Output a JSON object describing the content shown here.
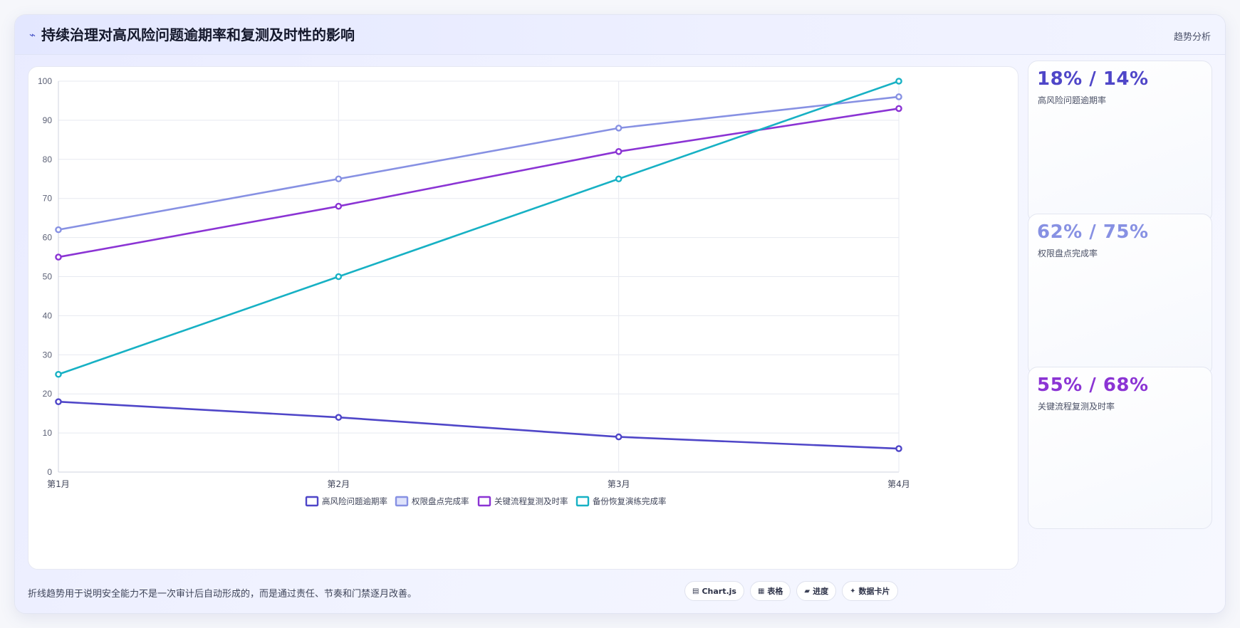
{
  "header": {
    "icon": "trend-line-icon",
    "title": "持续治理对高风险问题逾期率和复测及时性的影响",
    "tag": "趋势分析"
  },
  "colors": {
    "s1": "#4f46c8",
    "s2": "#8791e3",
    "s3": "#8b34d4",
    "s4": "#17b1c4"
  },
  "chart_data": {
    "type": "line",
    "title": "",
    "xlabel": "",
    "ylabel": "",
    "categories": [
      "第1月",
      "第2月",
      "第3月",
      "第4月"
    ],
    "ylim": [
      0,
      100
    ],
    "yticks": [
      0,
      10,
      20,
      30,
      40,
      50,
      60,
      70,
      80,
      90,
      100
    ],
    "grid": true,
    "legend": "bottom",
    "series": [
      {
        "name": "高风险问题逾期率",
        "values": [
          18,
          14,
          9,
          6
        ],
        "color": "#4f46c8",
        "legend_fill": "#ffffff"
      },
      {
        "name": "权限盘点完成率",
        "values": [
          62,
          75,
          88,
          96
        ],
        "color": "#8791e3",
        "legend_fill": "#dfe3fb"
      },
      {
        "name": "关键流程复测及时率",
        "values": [
          55,
          68,
          82,
          93
        ],
        "color": "#8b34d4",
        "legend_fill": "#ffffff"
      },
      {
        "name": "备份恢复演练完成率",
        "values": [
          25,
          50,
          75,
          100
        ],
        "color": "#17b1c4",
        "legend_fill": "#ffffff"
      }
    ]
  },
  "kpis": [
    {
      "value": "18% / 14%",
      "label": "高风险问题逾期率",
      "color": "#4f46c8"
    },
    {
      "value": "62% / 75%",
      "label": "权限盘点完成率",
      "color": "#8791e3"
    },
    {
      "value": "55% / 68%",
      "label": "关键流程复测及时率",
      "color": "#8b34d4"
    }
  ],
  "footer": {
    "note": "折线趋势用于说明安全能力不是一次审计后自动形成的，而是通过责任、节奏和门禁逐月改善。",
    "tools": [
      {
        "icon": "chart-icon",
        "glyph": "▤",
        "label": "Chart.js"
      },
      {
        "icon": "table-icon",
        "glyph": "▦",
        "label": "表格"
      },
      {
        "icon": "progress-icon",
        "glyph": "▰",
        "label": "进度"
      },
      {
        "icon": "card-icon",
        "glyph": "✦",
        "label": "数据卡片"
      }
    ]
  }
}
